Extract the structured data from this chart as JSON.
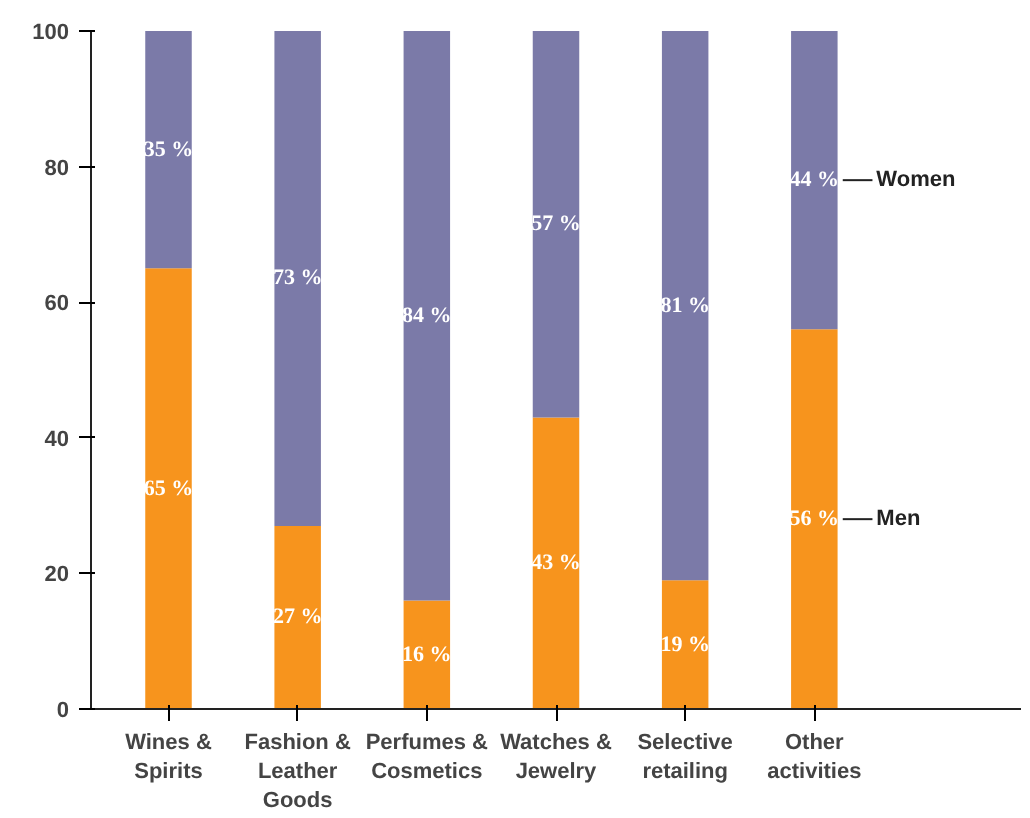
{
  "chart_data": {
    "type": "bar",
    "stacked": true,
    "categories": [
      "Wines & Spirits",
      "Fashion & Leather Goods",
      "Perfumes & Cosmetics",
      "Watches & Jewelry",
      "Selective retailing",
      "Other activities"
    ],
    "series": [
      {
        "name": "Men",
        "color": "#f7941d",
        "values": [
          65,
          27,
          16,
          43,
          19,
          56
        ],
        "value_labels": [
          "65 %",
          "27 %",
          "16 %",
          "43 %",
          "19 %",
          "56 %"
        ]
      },
      {
        "name": "Women",
        "color": "#7b7aa8",
        "values": [
          35,
          73,
          84,
          57,
          81,
          44
        ],
        "value_labels": [
          "35 %",
          "73 %",
          "84 %",
          "57 %",
          "81 %",
          "44 %"
        ]
      }
    ],
    "ylim": [
      0,
      100
    ],
    "yticks": [
      0,
      20,
      40,
      60,
      80,
      100
    ],
    "grid": false,
    "legend": "right"
  }
}
